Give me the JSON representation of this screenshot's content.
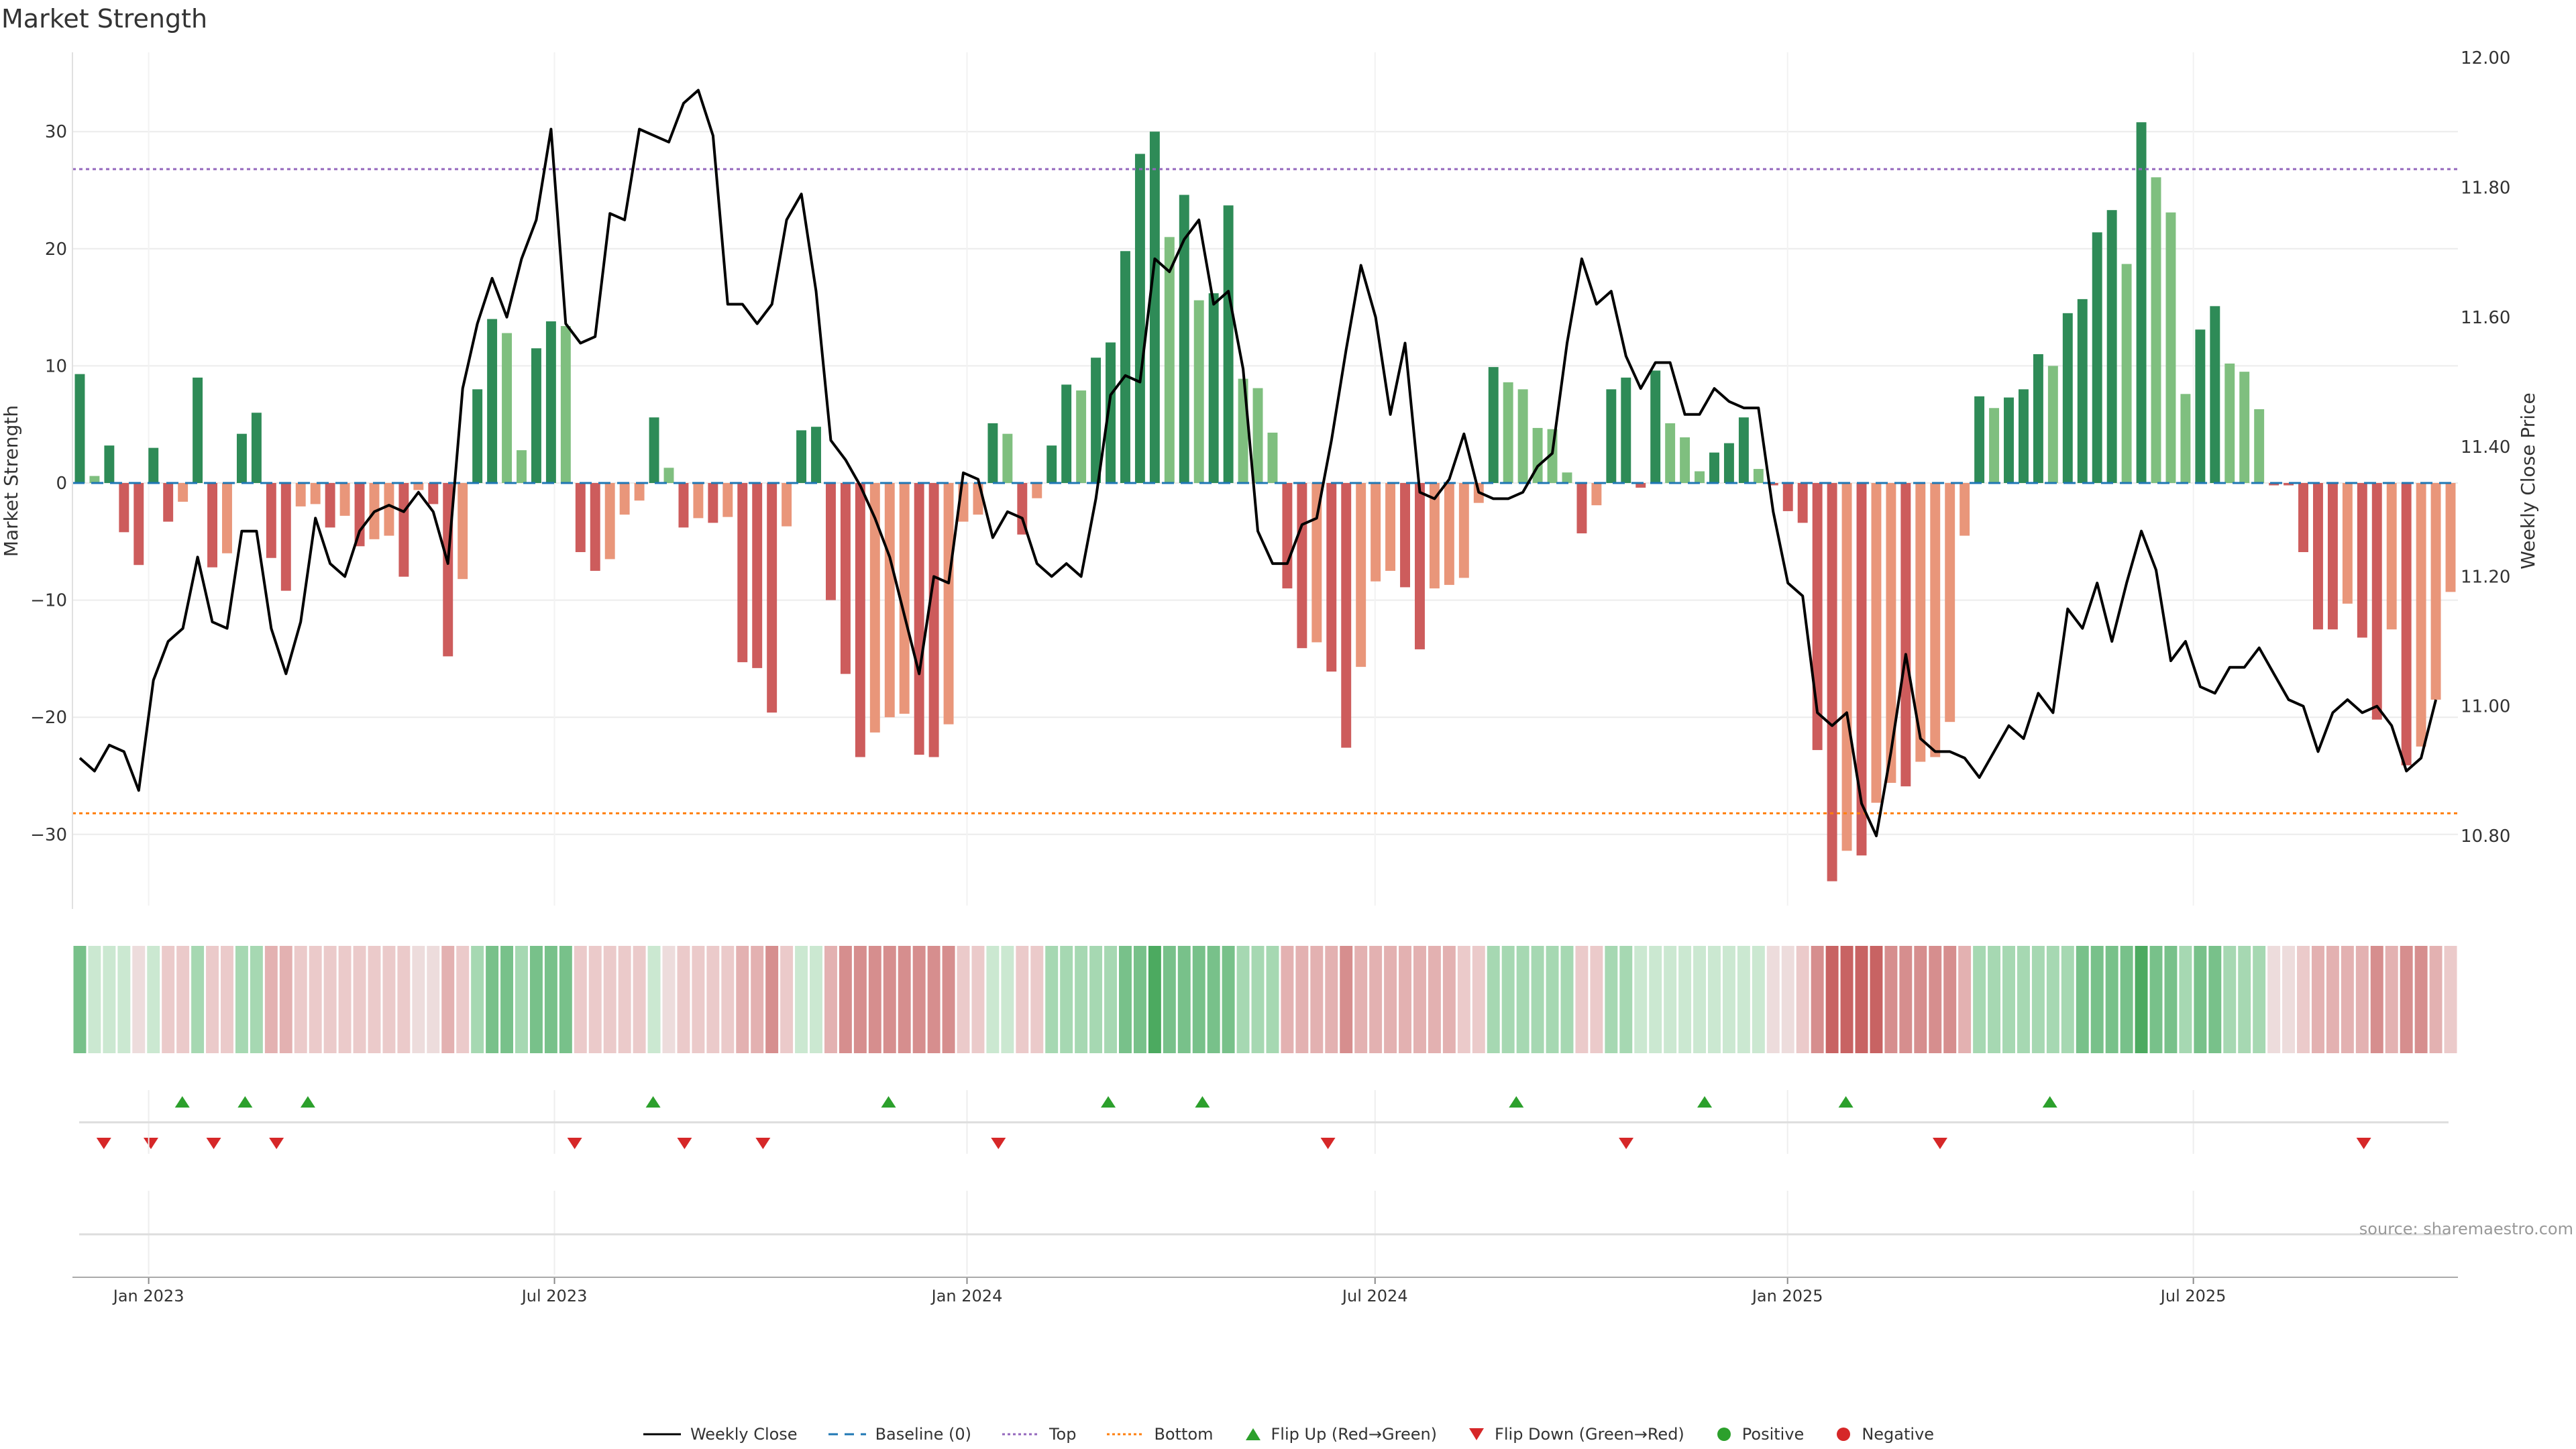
{
  "title": "Market Strength",
  "source": "source: sharemaestro.com",
  "colors": {
    "pos_dark": "#2e8b57",
    "pos_light": "#7fbf7f",
    "neg_dark": "#cd5c5c",
    "neg_light": "#e9967a",
    "price": "#000000",
    "baseline": "#1f77b4",
    "top": "#9467bd",
    "bottom": "#ff7f0e",
    "flip_up": "#2ca02c",
    "flip_down": "#d62728",
    "positive": "#2ca02c",
    "negative": "#d62728"
  },
  "chart_data": {
    "type": "bar",
    "title": "Market Strength",
    "ylabel": "Market Strength",
    "y2label": "Weekly Close Price",
    "ylim": [
      -37,
      37
    ],
    "y2lim": [
      10.68,
      12.0
    ],
    "yticks": [
      -30,
      -20,
      -10,
      0,
      10,
      20,
      30
    ],
    "y2ticks": [
      "10.80",
      "11.00",
      "11.20",
      "11.40",
      "11.60",
      "11.80",
      "12.00"
    ],
    "x_start": "2022-11-28",
    "x_end": "2025-10-27",
    "xticks": [
      {
        "date": "2023-01-01",
        "label": "Jan 2023"
      },
      {
        "date": "2023-07-01",
        "label": "Jul 2023"
      },
      {
        "date": "2024-01-01",
        "label": "Jan 2024"
      },
      {
        "date": "2024-07-01",
        "label": "Jul 2024"
      },
      {
        "date": "2025-01-01",
        "label": "Jan 2025"
      },
      {
        "date": "2025-07-01",
        "label": "Jul 2025"
      }
    ],
    "top_level": 26.8,
    "bottom_level": -28.2,
    "strength": [
      9.3,
      0.6,
      3.2,
      -4.2,
      -7,
      3,
      -3.3,
      -1.6,
      9,
      -7.2,
      -6,
      4.2,
      6,
      -6.4,
      -9.2,
      -2,
      -1.8,
      -3.8,
      -2.8,
      -5.4,
      -4.8,
      -4.5,
      -8,
      -0.6,
      -1.8,
      -14.8,
      -8.2,
      8,
      14,
      12.8,
      2.8,
      11.5,
      13.8,
      13.4,
      -5.9,
      -7.5,
      -6.5,
      -2.7,
      -1.5,
      5.6,
      1.3,
      -3.8,
      -3,
      -3.4,
      -2.9,
      -15.3,
      -15.8,
      -19.6,
      -3.7,
      4.5,
      4.8,
      -10,
      -16.3,
      -23.4,
      -21.3,
      -20,
      -19.7,
      -23.2,
      -23.4,
      -20.6,
      -3.3,
      -2.7,
      5.1,
      4.2,
      -4.4,
      -1.3,
      3.2,
      8.4,
      7.9,
      10.7,
      12,
      19.8,
      28.1,
      30,
      21,
      24.6,
      15.6,
      16.2,
      23.7,
      8.9,
      8.1,
      4.3,
      -9,
      -14.1,
      -13.6,
      -16.1,
      -22.6,
      -15.7,
      -8.4,
      -7.5,
      -8.9,
      -14.2,
      -9,
      -8.7,
      -8.1,
      -1.7,
      9.9,
      8.6,
      8,
      4.7,
      4.6,
      0.9,
      -4.3,
      -1.9,
      8,
      9,
      -0.4,
      9.6,
      5.1,
      3.9,
      1,
      2.6,
      3.4,
      5.6,
      1.2,
      -0.2,
      -2.4,
      -3.4,
      -22.8,
      -34,
      -31.4,
      -31.8,
      -27.3,
      -25.6,
      -25.9,
      -23.8,
      -23.4,
      -20.4,
      -4.5,
      7.4,
      6.4,
      7.3,
      8,
      11,
      10,
      14.5,
      15.7,
      21.4,
      23.3,
      18.7,
      30.8,
      26.1,
      23.1,
      7.6,
      13.1,
      15.1,
      10.2,
      9.5,
      6.3,
      -0.2,
      -0.2,
      -5.9,
      -12.5,
      -12.5,
      -10.3,
      -13.2,
      -20.2,
      -12.5,
      -24.1,
      -22.5,
      -18.5,
      -9.3
    ],
    "price": [
      10.92,
      10.9,
      10.94,
      10.93,
      10.87,
      11.04,
      11.1,
      11.12,
      11.23,
      11.13,
      11.12,
      11.27,
      11.27,
      11.12,
      11.05,
      11.13,
      11.29,
      11.22,
      11.2,
      11.27,
      11.3,
      11.31,
      11.3,
      11.33,
      11.3,
      11.22,
      11.49,
      11.59,
      11.66,
      11.6,
      11.69,
      11.75,
      11.89,
      11.59,
      11.56,
      11.57,
      11.76,
      11.75,
      11.89,
      11.88,
      11.87,
      11.93,
      11.95,
      11.88,
      11.62,
      11.62,
      11.59,
      11.62,
      11.75,
      11.79,
      11.64,
      11.41,
      11.38,
      11.34,
      11.29,
      11.23,
      11.14,
      11.05,
      11.2,
      11.19,
      11.36,
      11.35,
      11.26,
      11.3,
      11.29,
      11.22,
      11.2,
      11.22,
      11.2,
      11.32,
      11.48,
      11.51,
      11.5,
      11.69,
      11.67,
      11.72,
      11.75,
      11.62,
      11.64,
      11.52,
      11.27,
      11.22,
      11.22,
      11.28,
      11.29,
      11.41,
      11.55,
      11.68,
      11.6,
      11.45,
      11.56,
      11.33,
      11.32,
      11.35,
      11.42,
      11.33,
      11.32,
      11.32,
      11.33,
      11.37,
      11.39,
      11.56,
      11.69,
      11.62,
      11.64,
      11.54,
      11.49,
      11.53,
      11.53,
      11.45,
      11.45,
      11.49,
      11.47,
      11.46,
      11.46,
      11.3,
      11.19,
      11.17,
      10.99,
      10.97,
      10.99,
      10.85,
      10.8,
      10.93,
      11.08,
      10.95,
      10.93,
      10.93,
      10.92,
      10.89,
      10.93,
      10.97,
      10.95,
      11.02,
      10.99,
      11.15,
      11.12,
      11.19,
      11.1,
      11.19,
      11.27,
      11.21,
      11.07,
      11.1,
      11.03,
      11.02,
      11.06,
      11.06,
      11.09,
      11.05,
      11.01,
      11.0,
      10.93,
      10.99,
      11.01,
      10.99,
      11.0,
      10.97,
      10.9,
      10.92,
      11.01
    ],
    "heat": [
      3,
      1,
      1,
      1,
      0,
      1,
      -1,
      -1,
      2,
      -1,
      -1,
      2,
      2,
      -2,
      -2,
      -1,
      -1,
      -1,
      -1,
      -1,
      -1,
      -1,
      -1,
      0,
      0,
      -2,
      -1,
      2,
      3,
      3,
      2,
      3,
      3,
      3,
      -1,
      -1,
      -1,
      -1,
      -1,
      1,
      0,
      -1,
      -1,
      -1,
      -1,
      -2,
      -2,
      -3,
      -1,
      1,
      1,
      -2,
      -3,
      -3,
      -3,
      -3,
      -3,
      -3,
      -3,
      -3,
      -1,
      -1,
      1,
      1,
      -1,
      -1,
      2,
      2,
      2,
      2,
      2,
      3,
      3,
      4,
      3,
      3,
      3,
      3,
      3,
      2,
      2,
      2,
      -2,
      -2,
      -2,
      -2,
      -3,
      -2,
      -2,
      -2,
      -2,
      -2,
      -2,
      -2,
      -1,
      -1,
      2,
      2,
      2,
      2,
      2,
      2,
      -1,
      -1,
      2,
      2,
      1,
      1,
      1,
      1,
      1,
      1,
      1,
      1,
      1,
      0,
      0,
      -1,
      -3,
      -4,
      -4,
      -4,
      -4,
      -3,
      -3,
      -3,
      -3,
      -3,
      -2,
      2,
      2,
      2,
      2,
      2,
      2,
      2,
      3,
      3,
      3,
      3,
      4,
      3,
      3,
      2,
      3,
      3,
      2,
      2,
      2,
      0,
      0,
      -1,
      -2,
      -2,
      -2,
      -2,
      -3,
      -2,
      -3,
      -3,
      -2,
      -1
    ],
    "flip_up": [
      "2023-01-16",
      "2023-02-13",
      "2023-03-13",
      "2023-08-14",
      "2023-11-27",
      "2024-03-04",
      "2024-04-15",
      "2024-09-02",
      "2024-11-25",
      "2025-01-27",
      "2025-04-28"
    ],
    "flip_down": [
      "2022-12-12",
      "2023-01-02",
      "2023-01-30",
      "2023-02-27",
      "2023-07-10",
      "2023-08-28",
      "2023-10-02",
      "2024-01-15",
      "2024-06-10",
      "2024-10-21",
      "2025-03-10",
      "2025-09-15"
    ],
    "legend": [
      "Weekly Close",
      "Baseline (0)",
      "Top",
      "Bottom",
      "Flip Up (Red→Green)",
      "Flip Down (Green→Red)",
      "Positive",
      "Negative"
    ],
    "grid": true
  }
}
